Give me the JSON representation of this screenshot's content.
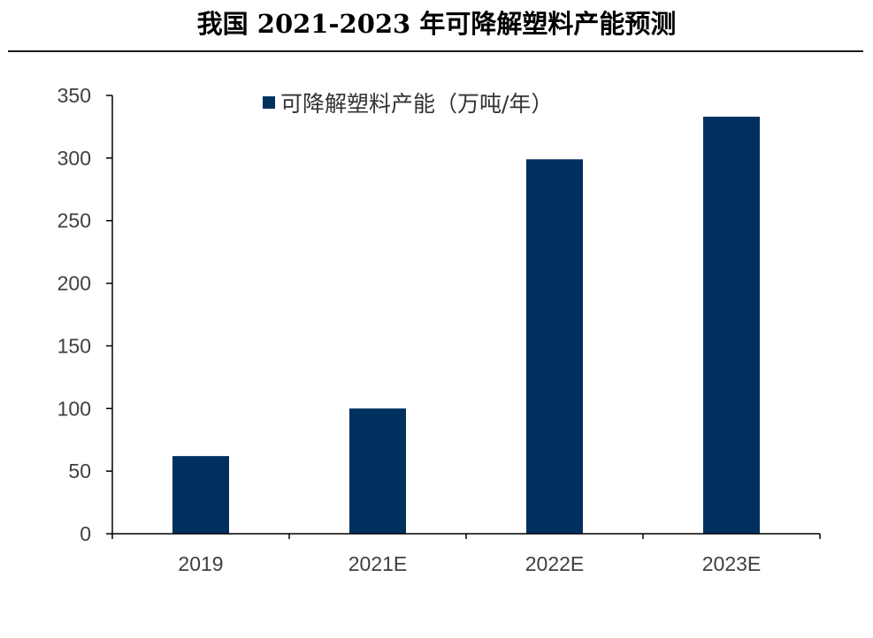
{
  "title": "我国 2021-2023 年可降解塑料产能预测",
  "chart_data": {
    "type": "bar",
    "title": "我国 2021-2023 年可降解塑料产能预测",
    "categories": [
      "2019",
      "2021E",
      "2022E",
      "2023E"
    ],
    "series": [
      {
        "name": "可降解塑料产能（万吨/年）",
        "values": [
          62,
          100,
          299,
          333
        ],
        "color": "#00305e"
      }
    ],
    "ylim": [
      0,
      350
    ],
    "yticks": [
      0,
      50,
      100,
      150,
      200,
      250,
      300,
      350
    ],
    "xlabel": "",
    "ylabel": "",
    "grid": false,
    "legend_position": "top-center"
  }
}
